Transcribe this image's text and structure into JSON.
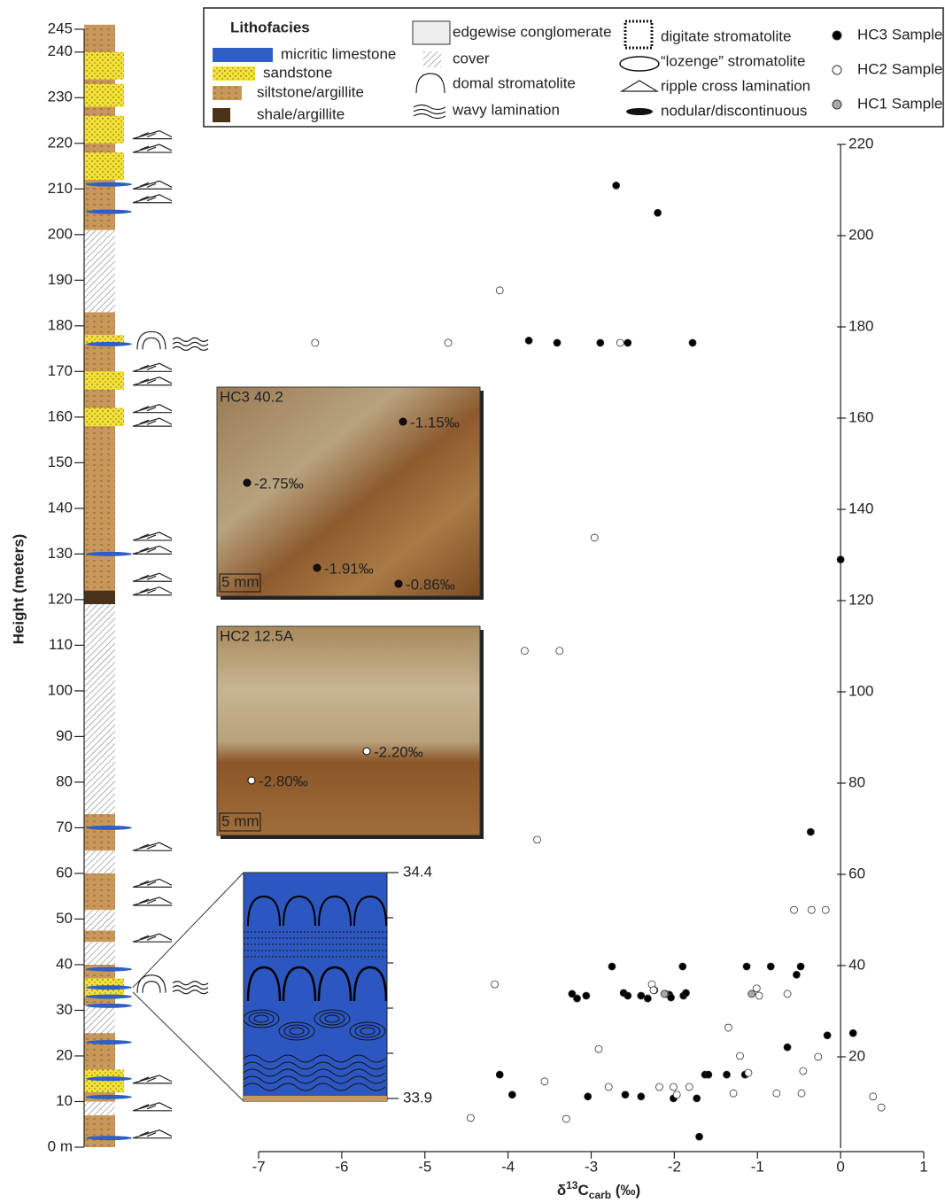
{
  "chart_data": {
    "type": "scatter",
    "ylabel": "Height (meters)",
    "xlabel_parts": [
      "δ",
      "13",
      "C",
      "carb",
      " (‰)"
    ],
    "ylim": [
      0,
      245
    ],
    "yticks": [
      {
        "value": 0,
        "label": "0 m"
      },
      10,
      20,
      30,
      40,
      50,
      60,
      70,
      80,
      90,
      100,
      110,
      120,
      130,
      140,
      150,
      160,
      170,
      180,
      190,
      200,
      210,
      220,
      230,
      240,
      245
    ],
    "y2lim": [
      0,
      220
    ],
    "y2ticks": [
      20,
      40,
      60,
      80,
      100,
      120,
      140,
      160,
      180,
      200,
      220
    ],
    "xlim": [
      -7,
      1
    ],
    "xticks": [
      -7,
      -6,
      -5,
      -4,
      -3,
      -2,
      -1,
      0,
      1
    ],
    "legend": {
      "title": "Lithofacies",
      "items": [
        "micritic limestone",
        "sandstone",
        "siltstone/argillite",
        "shale/argillite",
        "edgewise conglomerate",
        "cover",
        "domal stromatolite",
        "wavy lamination",
        "digitate stromatolite",
        "“lozenge” stromatolite",
        "ripple cross lamination",
        "nodular/discontinuous"
      ]
    },
    "insets": [
      {
        "title": "HC3 40.2",
        "labels": [
          "-1.15‰",
          "-2.75‰",
          "-1.91‰",
          "-0.86‰"
        ],
        "scale": "5 mm"
      },
      {
        "title": "HC2 12.5A",
        "labels": [
          "-2.20‰",
          "-2.80‰"
        ],
        "scale": "5 mm"
      }
    ],
    "zoom_labels": [
      "34.4",
      "33.9"
    ],
    "series": [
      {
        "name": "HC3 Sample",
        "color": "#000000",
        "axis": "y2",
        "x": [
          -2.7,
          -2.2,
          -3.75,
          -3.41,
          -2.89,
          -2.56,
          -1.78,
          0,
          -0.36,
          -2.75,
          -1.9,
          -1.13,
          -0.84,
          -0.48,
          -0.53,
          -3.23,
          -3.17,
          -3.06,
          -2.61,
          -2.56,
          -2.4,
          -2.32,
          -2.24,
          -2.06,
          -2.04,
          -1.89,
          -1.86,
          -0.64,
          -0.16,
          0.15,
          -4.1,
          -3.95,
          -3.04,
          -2.59,
          -2.4,
          -2.01,
          -1.73,
          -1.63,
          -1.59,
          -1.37,
          -1.15,
          -1.7
        ],
        "values": [
          211,
          205,
          177,
          176.5,
          176.5,
          176.5,
          176.5,
          129,
          69.3,
          39.8,
          39.8,
          39.8,
          39.8,
          39.8,
          38,
          33.8,
          32.8,
          33.4,
          34,
          33.4,
          33.4,
          32.8,
          34.6,
          33.6,
          33,
          33.4,
          34,
          22.1,
          24.7,
          25.2,
          16.1,
          11.7,
          11.3,
          11.7,
          11.3,
          10.9,
          10.9,
          16.1,
          16.1,
          16.1,
          16.1,
          2.5
        ]
      },
      {
        "name": "HC2 Sample",
        "color": "#ffffff",
        "axis": "y2",
        "x": [
          -6.32,
          -4.72,
          -4.1,
          -2.65,
          -2.96,
          -3.8,
          -3.38,
          -3.65,
          -0.56,
          -0.35,
          -0.18,
          -4.16,
          -2.27,
          -2.25,
          -2.11,
          -1.01,
          -0.98,
          -0.64,
          -1.35,
          -2.91,
          -1.21,
          -0.27,
          -0.45,
          -3.56,
          -2.79,
          -2.18,
          -2.01,
          -1.97,
          -1.82,
          -1.29,
          -1.11,
          -0.77,
          -0.47,
          0.39,
          0.49,
          -4.45,
          -3.3
        ],
        "values": [
          176.5,
          176.5,
          188,
          176.5,
          133.8,
          109,
          109,
          67.6,
          52.2,
          52.2,
          52.2,
          35.9,
          35.9,
          34.6,
          33.8,
          35,
          33.4,
          33.8,
          26.4,
          21.7,
          20.2,
          20,
          16.9,
          14.6,
          13.4,
          13.4,
          13.4,
          11.7,
          13.4,
          12,
          16.5,
          12,
          12,
          11.3,
          8.9,
          6.6,
          6.4
        ]
      },
      {
        "name": "HC1 Sample",
        "color": "#aaaaaa",
        "axis": "y2",
        "x": [
          -1.07,
          -2.12
        ],
        "values": [
          33.8,
          33.8
        ]
      }
    ]
  }
}
